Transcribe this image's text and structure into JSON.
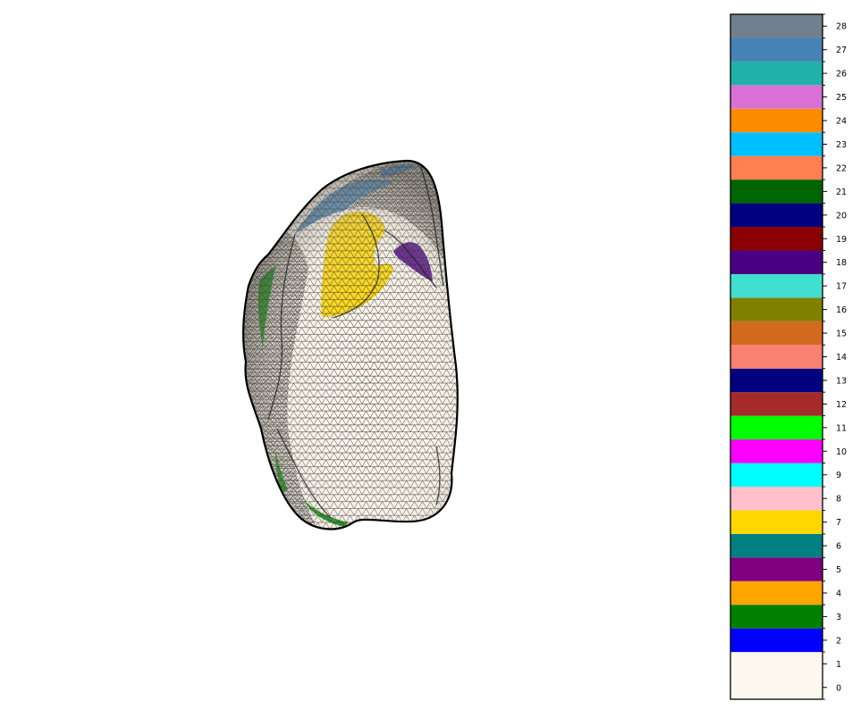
{
  "chart_data": {
    "type": "heatmap",
    "title": "",
    "mesh": {
      "background": "#ffffff",
      "base_color": "#fdf8ee",
      "wire_color": "#000000",
      "visible_labels": [
        {
          "label": 7,
          "color": "#FFD700"
        },
        {
          "label": 18,
          "color": "#4B0082"
        },
        {
          "label": 27,
          "color": "#4682B4"
        },
        {
          "label": 3,
          "color": "#008000"
        }
      ]
    },
    "colorbar": {
      "ticks": [
        "0",
        "1",
        "2",
        "3",
        "4",
        "5",
        "6",
        "7",
        "8",
        "9",
        "10",
        "11",
        "12",
        "13",
        "14",
        "15",
        "16",
        "17",
        "18",
        "19",
        "20",
        "21",
        "22",
        "23",
        "24",
        "25",
        "26",
        "27",
        "28"
      ],
      "bins": [
        {
          "from": -0.5,
          "to": 1.5,
          "color": "#FDF8EE"
        },
        {
          "from": 1.5,
          "to": 2.5,
          "color": "#0000FF"
        },
        {
          "from": 2.5,
          "to": 3.5,
          "color": "#008000"
        },
        {
          "from": 3.5,
          "to": 4.5,
          "color": "#FFA500"
        },
        {
          "from": 4.5,
          "to": 5.5,
          "color": "#800080"
        },
        {
          "from": 5.5,
          "to": 6.5,
          "color": "#008080"
        },
        {
          "from": 6.5,
          "to": 7.5,
          "color": "#FFD700"
        },
        {
          "from": 7.5,
          "to": 8.5,
          "color": "#FFC0CB"
        },
        {
          "from": 8.5,
          "to": 9.5,
          "color": "#00FFFF"
        },
        {
          "from": 9.5,
          "to": 10.5,
          "color": "#FF00FF"
        },
        {
          "from": 10.5,
          "to": 11.5,
          "color": "#00FF00"
        },
        {
          "from": 11.5,
          "to": 12.5,
          "color": "#A52A2A"
        },
        {
          "from": 12.5,
          "to": 13.5,
          "color": "#000080"
        },
        {
          "from": 13.5,
          "to": 14.5,
          "color": "#FA8072"
        },
        {
          "from": 14.5,
          "to": 15.5,
          "color": "#D2691E"
        },
        {
          "from": 15.5,
          "to": 16.5,
          "color": "#808000"
        },
        {
          "from": 16.5,
          "to": 17.5,
          "color": "#40E0D0"
        },
        {
          "from": 17.5,
          "to": 18.5,
          "color": "#4B0082"
        },
        {
          "from": 18.5,
          "to": 19.5,
          "color": "#8B0000"
        },
        {
          "from": 19.5,
          "to": 20.5,
          "color": "#000080"
        },
        {
          "from": 20.5,
          "to": 21.5,
          "color": "#006400"
        },
        {
          "from": 21.5,
          "to": 22.5,
          "color": "#FF7F50"
        },
        {
          "from": 22.5,
          "to": 23.5,
          "color": "#00BFFF"
        },
        {
          "from": 23.5,
          "to": 24.5,
          "color": "#FF8C00"
        },
        {
          "from": 24.5,
          "to": 25.5,
          "color": "#DA70D6"
        },
        {
          "from": 25.5,
          "to": 26.5,
          "color": "#20B2AA"
        },
        {
          "from": 26.5,
          "to": 27.5,
          "color": "#4682B4"
        },
        {
          "from": 27.5,
          "to": 28.5,
          "color": "#708090"
        }
      ],
      "range": [
        -0.5,
        28.5
      ]
    }
  }
}
